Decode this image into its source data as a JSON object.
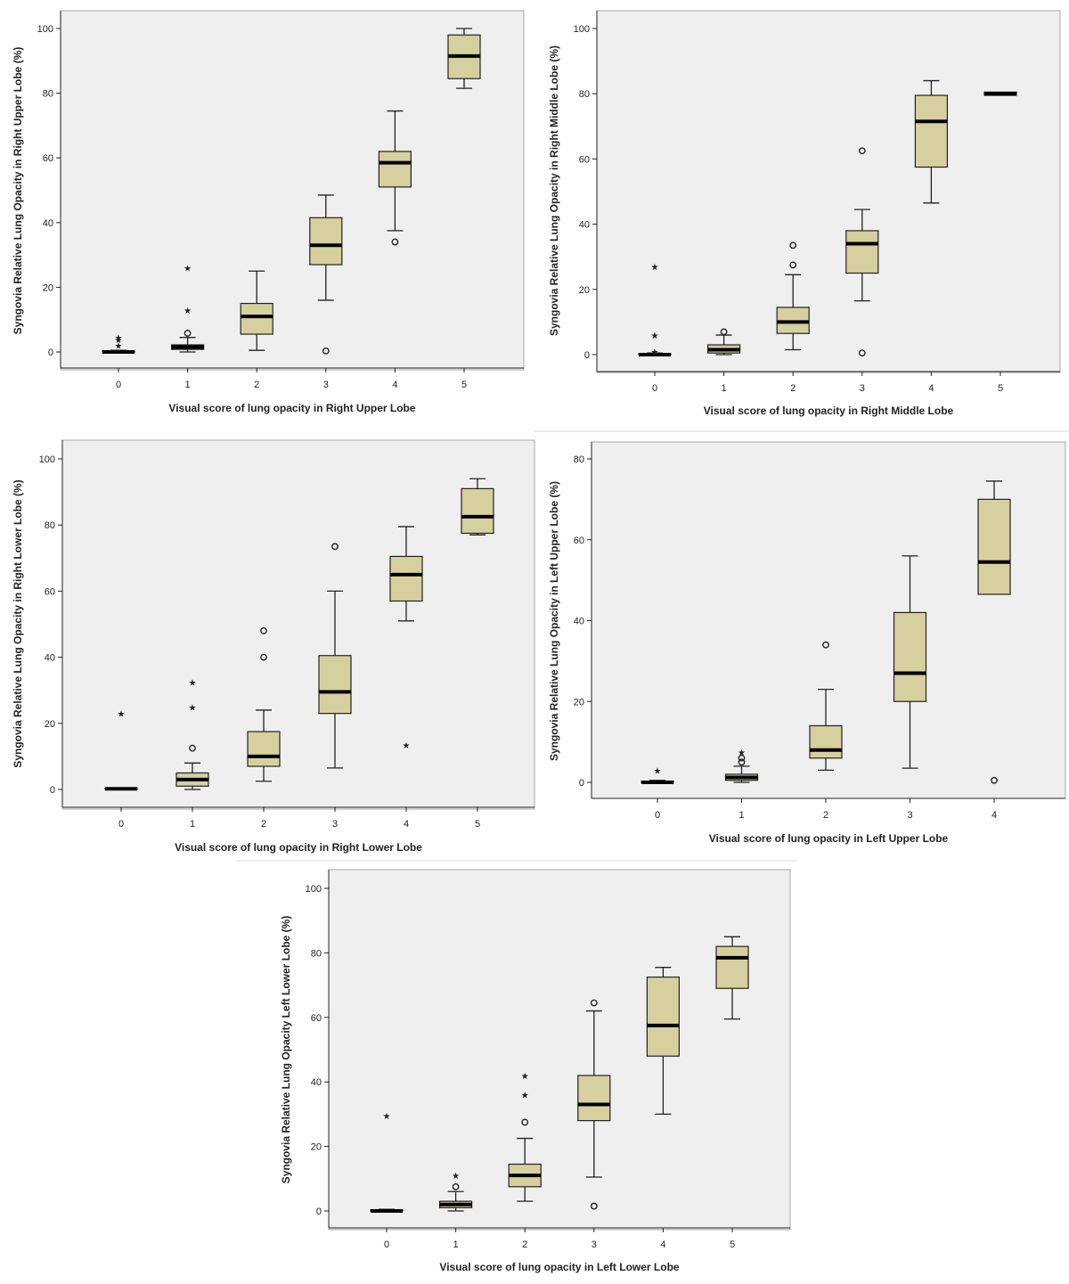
{
  "chart_data": [
    {
      "type": "boxplot",
      "xlabel": "Visual score of lung opacity in Right Upper Lobe",
      "ylabel": "Syngovia Relative Lung Opacity in Right Upper Lobe (%)",
      "ylim": [
        0,
        100
      ],
      "yticks": [
        0,
        20,
        40,
        60,
        80,
        100
      ],
      "categories": [
        "0",
        "1",
        "2",
        "3",
        "4",
        "5"
      ],
      "boxes": [
        {
          "category": "0",
          "whisker_low": 0,
          "q1": 0,
          "median": 0,
          "q3": 0.3,
          "whisker_high": 0.5,
          "outliers": [
            {
              "value": 2,
              "marker": "star"
            },
            {
              "value": 3.8,
              "marker": "star"
            },
            {
              "value": 4.5,
              "marker": "star"
            }
          ]
        },
        {
          "category": "1",
          "whisker_low": 0,
          "q1": 0.8,
          "median": 1.5,
          "q3": 2.2,
          "whisker_high": 4.5,
          "outliers": [
            {
              "value": 5.8,
              "marker": "circle"
            },
            {
              "value": 13,
              "marker": "star"
            },
            {
              "value": 26,
              "marker": "star"
            }
          ]
        },
        {
          "category": "2",
          "whisker_low": 0.5,
          "q1": 5.5,
          "median": 11,
          "q3": 15,
          "whisker_high": 25,
          "outliers": []
        },
        {
          "category": "3",
          "whisker_low": 16,
          "q1": 27,
          "median": 33,
          "q3": 41.5,
          "whisker_high": 48.5,
          "outliers": [
            {
              "value": 0.3,
              "marker": "circle"
            }
          ]
        },
        {
          "category": "4",
          "whisker_low": 37.5,
          "q1": 51,
          "median": 58.5,
          "q3": 62,
          "whisker_high": 74.5,
          "outliers": [
            {
              "value": 34,
              "marker": "circle"
            }
          ]
        },
        {
          "category": "5",
          "whisker_low": 81.5,
          "q1": 84.5,
          "median": 91.5,
          "q3": 98,
          "whisker_high": 100,
          "outliers": []
        }
      ]
    },
    {
      "type": "boxplot",
      "xlabel": "Visual score of lung opacity in Right Middle Lobe",
      "ylabel": "Syngovia Relative Lung Opacity in Right Middle Lobe (%)",
      "ylim": [
        0,
        100
      ],
      "yticks": [
        0,
        20,
        40,
        60,
        80,
        100
      ],
      "categories": [
        "0",
        "1",
        "2",
        "3",
        "4",
        "5"
      ],
      "boxes": [
        {
          "category": "0",
          "whisker_low": 0,
          "q1": 0,
          "median": 0,
          "q3": 0.3,
          "whisker_high": 0.5,
          "outliers": [
            {
              "value": 1,
              "marker": "star"
            },
            {
              "value": 6,
              "marker": "star"
            },
            {
              "value": 27,
              "marker": "star"
            }
          ]
        },
        {
          "category": "1",
          "whisker_low": 0,
          "q1": 0.5,
          "median": 1.5,
          "q3": 3,
          "whisker_high": 6,
          "outliers": [
            {
              "value": 7,
              "marker": "circle"
            }
          ]
        },
        {
          "category": "2",
          "whisker_low": 1.5,
          "q1": 6.5,
          "median": 10,
          "q3": 14.5,
          "whisker_high": 24.5,
          "outliers": [
            {
              "value": 27.5,
              "marker": "circle"
            },
            {
              "value": 33.5,
              "marker": "circle"
            }
          ]
        },
        {
          "category": "3",
          "whisker_low": 16.5,
          "q1": 25,
          "median": 34,
          "q3": 38,
          "whisker_high": 44.5,
          "outliers": [
            {
              "value": 0.5,
              "marker": "circle"
            },
            {
              "value": 62.5,
              "marker": "circle"
            }
          ]
        },
        {
          "category": "4",
          "whisker_low": 46.5,
          "q1": 57.5,
          "median": 71.5,
          "q3": 79.5,
          "whisker_high": 84,
          "outliers": []
        },
        {
          "category": "5",
          "whisker_low": 79.5,
          "q1": 79.5,
          "median": 80,
          "q3": 80.5,
          "whisker_high": 80.5,
          "outliers": []
        }
      ]
    },
    {
      "type": "boxplot",
      "xlabel": "Visual score of lung opacity in Right Lower Lobe",
      "ylabel": "Syngovia Relative Lung Opacity in Right Lower Lobe (%)",
      "ylim": [
        0,
        100
      ],
      "yticks": [
        0,
        20,
        40,
        60,
        80,
        100
      ],
      "categories": [
        "0",
        "1",
        "2",
        "3",
        "4",
        "5"
      ],
      "boxes": [
        {
          "category": "0",
          "whisker_low": 0,
          "q1": 0,
          "median": 0.2,
          "q3": 0.4,
          "whisker_high": 0.5,
          "outliers": [
            {
              "value": 23,
              "marker": "star"
            }
          ]
        },
        {
          "category": "1",
          "whisker_low": 0,
          "q1": 1,
          "median": 3,
          "q3": 5,
          "whisker_high": 8,
          "outliers": [
            {
              "value": 12.5,
              "marker": "circle"
            },
            {
              "value": 25,
              "marker": "star"
            },
            {
              "value": 32.5,
              "marker": "star"
            }
          ]
        },
        {
          "category": "2",
          "whisker_low": 2.5,
          "q1": 7,
          "median": 10,
          "q3": 17.5,
          "whisker_high": 24,
          "outliers": [
            {
              "value": 40,
              "marker": "circle"
            },
            {
              "value": 48,
              "marker": "circle"
            }
          ]
        },
        {
          "category": "3",
          "whisker_low": 6.5,
          "q1": 23,
          "median": 29.5,
          "q3": 40.5,
          "whisker_high": 60,
          "outliers": [
            {
              "value": 73.5,
              "marker": "circle"
            }
          ]
        },
        {
          "category": "4",
          "whisker_low": 51,
          "q1": 57,
          "median": 65,
          "q3": 70.5,
          "whisker_high": 79.5,
          "outliers": [
            {
              "value": 13.5,
              "marker": "star"
            }
          ]
        },
        {
          "category": "5",
          "whisker_low": 77,
          "q1": 77.5,
          "median": 82.5,
          "q3": 91,
          "whisker_high": 94,
          "outliers": []
        }
      ]
    },
    {
      "type": "boxplot",
      "xlabel": "Visual score of lung opacity in Left Upper Lobe",
      "ylabel": "Syngovia Relative Lung Opacity in Left Upper Lobe (%)",
      "ylim": [
        -4,
        82
      ],
      "yticks": [
        0,
        20,
        40,
        60,
        80
      ],
      "categories": [
        "0",
        "1",
        "2",
        "3",
        "4"
      ],
      "boxes": [
        {
          "category": "0",
          "whisker_low": 0,
          "q1": 0,
          "median": 0,
          "q3": 0.3,
          "whisker_high": 0.5,
          "outliers": [
            {
              "value": 3,
              "marker": "star"
            }
          ]
        },
        {
          "category": "1",
          "whisker_low": 0,
          "q1": 0.5,
          "median": 1.2,
          "q3": 2,
          "whisker_high": 4,
          "outliers": [
            {
              "value": 5,
              "marker": "circle"
            },
            {
              "value": 6,
              "marker": "circle"
            },
            {
              "value": 7.5,
              "marker": "star"
            }
          ]
        },
        {
          "category": "2",
          "whisker_low": 3,
          "q1": 6,
          "median": 8,
          "q3": 14,
          "whisker_high": 23,
          "outliers": [
            {
              "value": 34,
              "marker": "circle"
            }
          ]
        },
        {
          "category": "3",
          "whisker_low": 3.5,
          "q1": 20,
          "median": 27,
          "q3": 42,
          "whisker_high": 56,
          "outliers": []
        },
        {
          "category": "4",
          "whisker_low": 46.5,
          "q1": 46.5,
          "median": 54.5,
          "q3": 70,
          "whisker_high": 74.5,
          "outliers": [
            {
              "value": 0.5,
              "marker": "circle"
            }
          ]
        }
      ]
    },
    {
      "type": "boxplot",
      "xlabel": "Visual score of lung opacity in Left Lower Lobe",
      "ylabel": "Syngovia Relative Lung Opacity Left Lower Lobe (%)",
      "ylim": [
        0,
        100
      ],
      "yticks": [
        0,
        20,
        40,
        60,
        80,
        100
      ],
      "categories": [
        "0",
        "1",
        "2",
        "3",
        "4",
        "5"
      ],
      "boxes": [
        {
          "category": "0",
          "whisker_low": 0,
          "q1": 0,
          "median": 0,
          "q3": 0.3,
          "whisker_high": 0.5,
          "outliers": [
            {
              "value": 29.5,
              "marker": "star"
            }
          ]
        },
        {
          "category": "1",
          "whisker_low": 0,
          "q1": 1,
          "median": 2,
          "q3": 3,
          "whisker_high": 6,
          "outliers": [
            {
              "value": 7.5,
              "marker": "circle"
            },
            {
              "value": 11,
              "marker": "star"
            }
          ]
        },
        {
          "category": "2",
          "whisker_low": 3,
          "q1": 7.5,
          "median": 11,
          "q3": 14.5,
          "whisker_high": 22.5,
          "outliers": [
            {
              "value": 27.5,
              "marker": "circle"
            },
            {
              "value": 36,
              "marker": "star"
            },
            {
              "value": 42,
              "marker": "star"
            }
          ]
        },
        {
          "category": "3",
          "whisker_low": 10.5,
          "q1": 28,
          "median": 33,
          "q3": 42,
          "whisker_high": 62,
          "outliers": [
            {
              "value": 1.5,
              "marker": "circle"
            },
            {
              "value": 64.5,
              "marker": "circle"
            }
          ]
        },
        {
          "category": "4",
          "whisker_low": 30,
          "q1": 48,
          "median": 57.5,
          "q3": 72.5,
          "whisker_high": 75.5,
          "outliers": []
        },
        {
          "category": "5",
          "whisker_low": 59.5,
          "q1": 69,
          "median": 78.5,
          "q3": 82,
          "whisker_high": 85,
          "outliers": []
        }
      ]
    }
  ]
}
